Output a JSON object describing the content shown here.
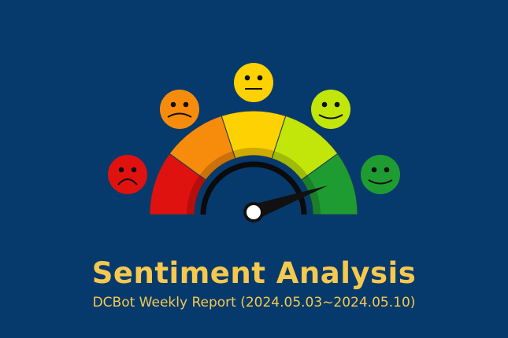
{
  "colors": {
    "background": "#063a6c",
    "text": "#f7c84e"
  },
  "gauge": {
    "needle_level": 0.89,
    "segments": [
      {
        "sentiment": "very-negative",
        "color": "#e0120f",
        "face": "frown"
      },
      {
        "sentiment": "negative",
        "color": "#f78c0c",
        "face": "slight-frown"
      },
      {
        "sentiment": "neutral",
        "color": "#fdd102",
        "face": "neutral"
      },
      {
        "sentiment": "positive",
        "color": "#c2e50a",
        "face": "smile"
      },
      {
        "sentiment": "very-positive",
        "color": "#1f9c31",
        "face": "smile"
      }
    ]
  },
  "title": "Sentiment Analysis",
  "subtitle": "DCBot Weekly Report (2024.05.03~2024.05.10)"
}
